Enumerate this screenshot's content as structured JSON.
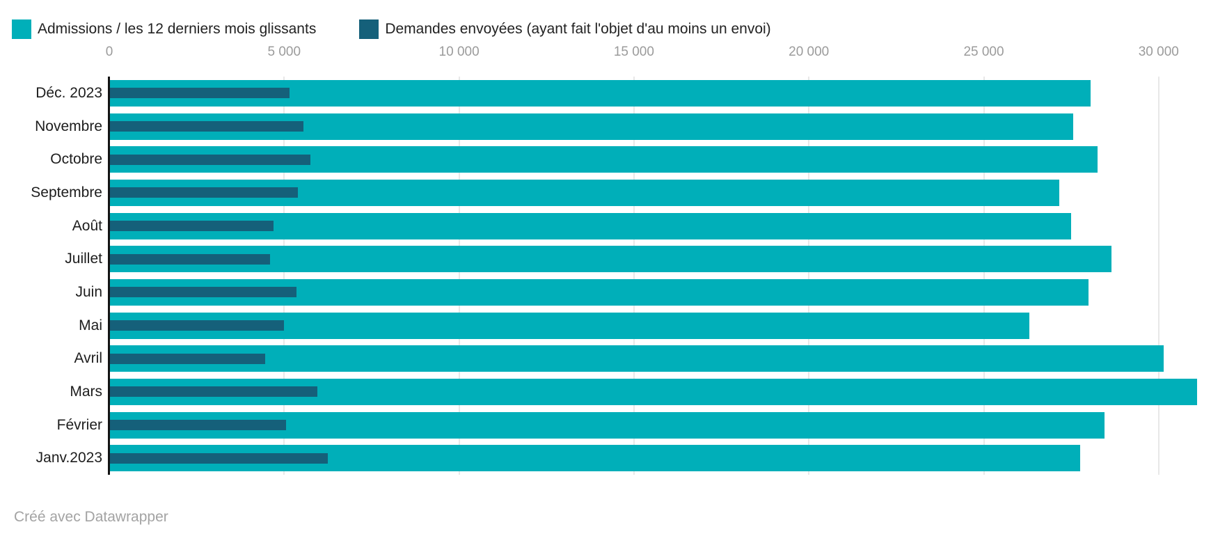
{
  "legend": {
    "items": [
      {
        "label": "Admissions / les 12 derniers mois glissants",
        "color": "#00AFB9"
      },
      {
        "label": "Demandes envoyées (ayant fait l'objet d'au moins un envoi)",
        "color": "#15607A"
      }
    ]
  },
  "footer": {
    "credit": "Créé avec Datawrapper"
  },
  "colors": {
    "admissions": "#00AFB9",
    "demandes": "#15607A",
    "gridline": "#e8e8e8",
    "axis_line": "#141414",
    "tick_text": "#9b9b9b",
    "label_text": "#1d1d1d"
  },
  "chart_data": {
    "type": "bar",
    "orientation": "horizontal",
    "title": "",
    "xlabel": "",
    "ylabel": "",
    "categories": [
      "Déc. 2023",
      "Novembre",
      "Octobre",
      "Septembre",
      "Août",
      "Juillet",
      "Juin",
      "Mai",
      "Avril",
      "Mars",
      "Février",
      "Janv.2023"
    ],
    "series": [
      {
        "name": "Admissions / les 12 derniers mois glissants",
        "color": "#00AFB9",
        "values": [
          28050,
          27550,
          28250,
          27150,
          27500,
          28650,
          28000,
          26300,
          30150,
          31100,
          28450,
          27750
        ]
      },
      {
        "name": "Demandes envoyées (ayant fait l'objet d'au moins un envoi)",
        "color": "#15607A",
        "values": [
          5150,
          5550,
          5750,
          5400,
          4700,
          4600,
          5350,
          5000,
          4450,
          5950,
          5050,
          6250
        ]
      }
    ],
    "x_axis": {
      "position": "top",
      "ticks": [
        0,
        5000,
        10000,
        15000,
        20000,
        25000,
        30000
      ],
      "tick_labels": [
        "0",
        "5 000",
        "10 000",
        "15 000",
        "20 000",
        "25 000",
        "30 000"
      ],
      "range": [
        0,
        31500
      ]
    },
    "grid": true,
    "legend_position": "top-left"
  }
}
